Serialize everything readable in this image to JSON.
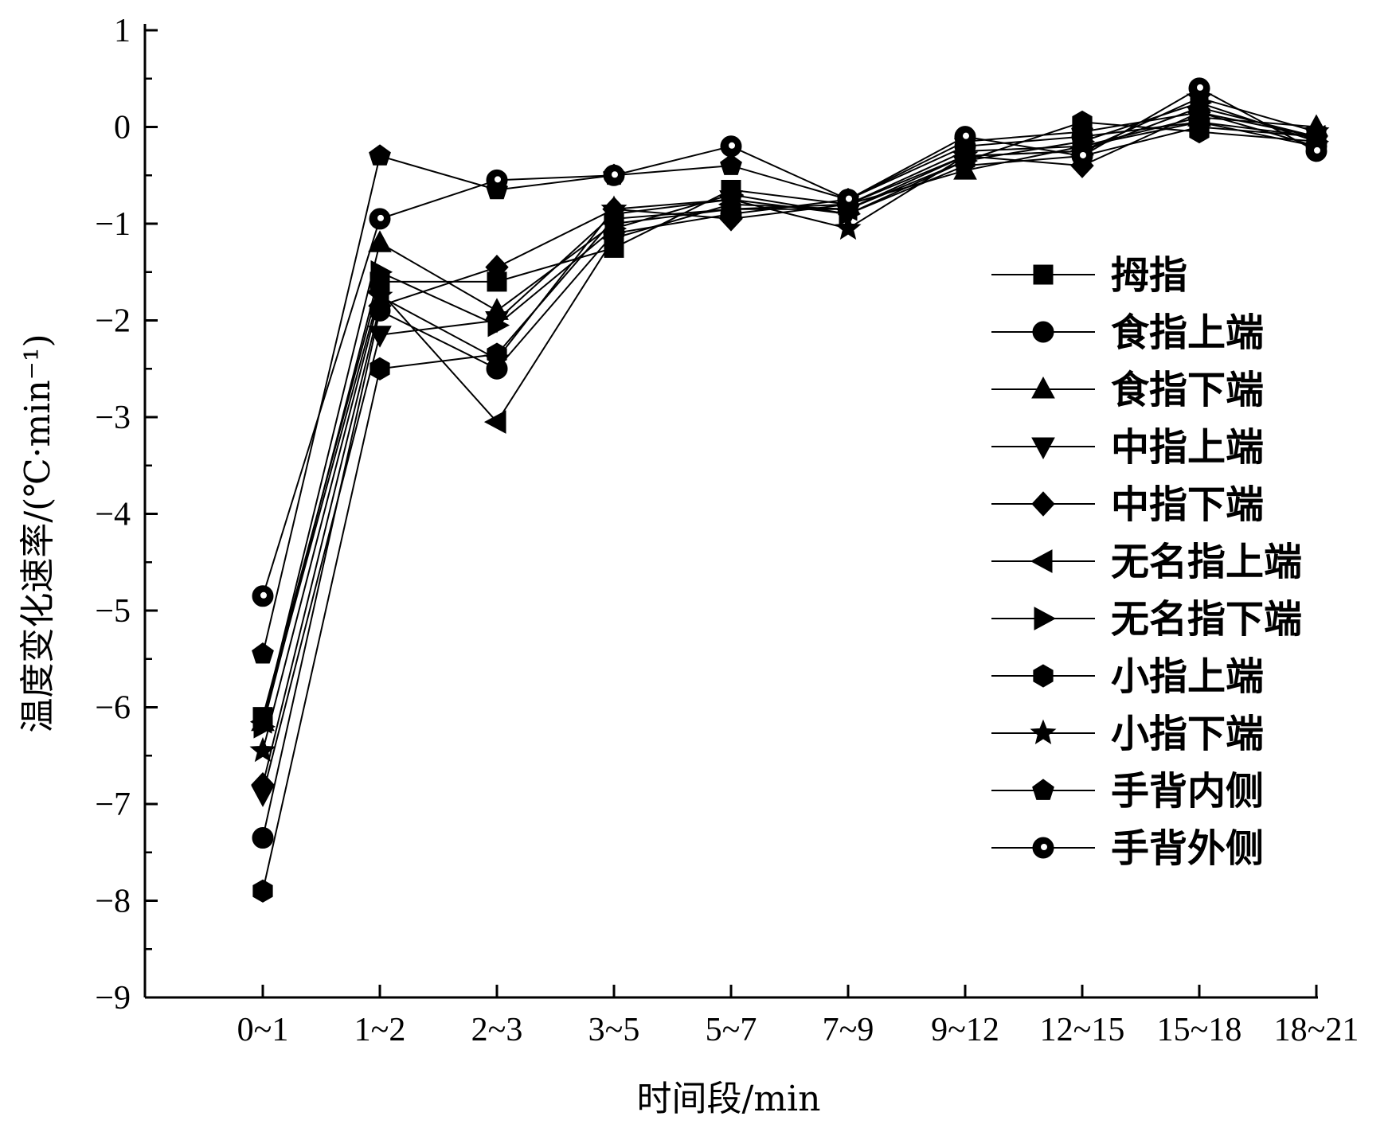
{
  "chart_data": {
    "type": "line",
    "xlabel": "时间段/min",
    "ylabel": "温度变化速率/(℃·min⁻¹)",
    "ylim": [
      -9,
      1
    ],
    "yticks": [
      "1",
      "0",
      "−1",
      "−2",
      "−3",
      "−4",
      "−5",
      "−6",
      "−7",
      "−8",
      "−9"
    ],
    "categories": [
      "0~1",
      "1~2",
      "2~3",
      "3~5",
      "5~7",
      "7~9",
      "9~12",
      "12~15",
      "15~18",
      "18~21"
    ],
    "grid": false,
    "legend_position": "right",
    "series": [
      {
        "name": "拇指",
        "marker": "square",
        "values": [
          -6.1,
          -1.6,
          -1.6,
          -1.25,
          -0.65,
          -0.8,
          -0.25,
          -0.2,
          0.05,
          -0.1
        ]
      },
      {
        "name": "食指上端",
        "marker": "circle",
        "values": [
          -7.35,
          -1.9,
          -2.5,
          -1.1,
          -0.9,
          -0.75,
          -0.2,
          -0.1,
          0.05,
          -0.2
        ]
      },
      {
        "name": "食指下端",
        "marker": "triangle-up",
        "values": [
          -6.15,
          -1.2,
          -1.9,
          -1.0,
          -0.85,
          -0.8,
          -0.45,
          -0.2,
          0.1,
          0.0
        ]
      },
      {
        "name": "中指上端",
        "marker": "triangle-down",
        "values": [
          -6.9,
          -2.15,
          -2.0,
          -0.9,
          -0.75,
          -0.9,
          -0.4,
          -0.3,
          0.0,
          -0.1
        ]
      },
      {
        "name": "中指下端",
        "marker": "diamond",
        "values": [
          -6.8,
          -1.85,
          -1.45,
          -0.85,
          -0.95,
          -0.8,
          -0.3,
          -0.4,
          0.15,
          -0.1
        ]
      },
      {
        "name": "无名指上端",
        "marker": "triangle-left",
        "values": [
          -6.15,
          -1.7,
          -3.05,
          -1.15,
          -0.8,
          -0.85,
          -0.3,
          -0.25,
          0.2,
          -0.1
        ]
      },
      {
        "name": "无名指下端",
        "marker": "triangle-right",
        "values": [
          -6.2,
          -1.5,
          -2.05,
          -1.05,
          -0.7,
          -0.9,
          -0.35,
          -0.15,
          0.25,
          -0.15
        ]
      },
      {
        "name": "小指上端",
        "marker": "hexagon",
        "values": [
          -7.9,
          -2.5,
          -2.35,
          -0.95,
          -0.85,
          -0.85,
          -0.35,
          0.05,
          -0.05,
          -0.15
        ]
      },
      {
        "name": "小指下端",
        "marker": "star",
        "values": [
          -6.45,
          -1.75,
          -2.4,
          -0.85,
          -0.75,
          -1.05,
          -0.3,
          -0.25,
          0.3,
          -0.05
        ]
      },
      {
        "name": "手背内侧",
        "marker": "pentagon",
        "values": [
          -5.45,
          -0.3,
          -0.65,
          -0.5,
          -0.4,
          -0.75,
          -0.15,
          -0.05,
          0.15,
          -0.2
        ]
      },
      {
        "name": "手背外侧",
        "marker": "circle-half",
        "values": [
          -4.85,
          -0.95,
          -0.55,
          -0.5,
          -0.2,
          -0.75,
          -0.1,
          -0.3,
          0.4,
          -0.25
        ]
      }
    ]
  }
}
